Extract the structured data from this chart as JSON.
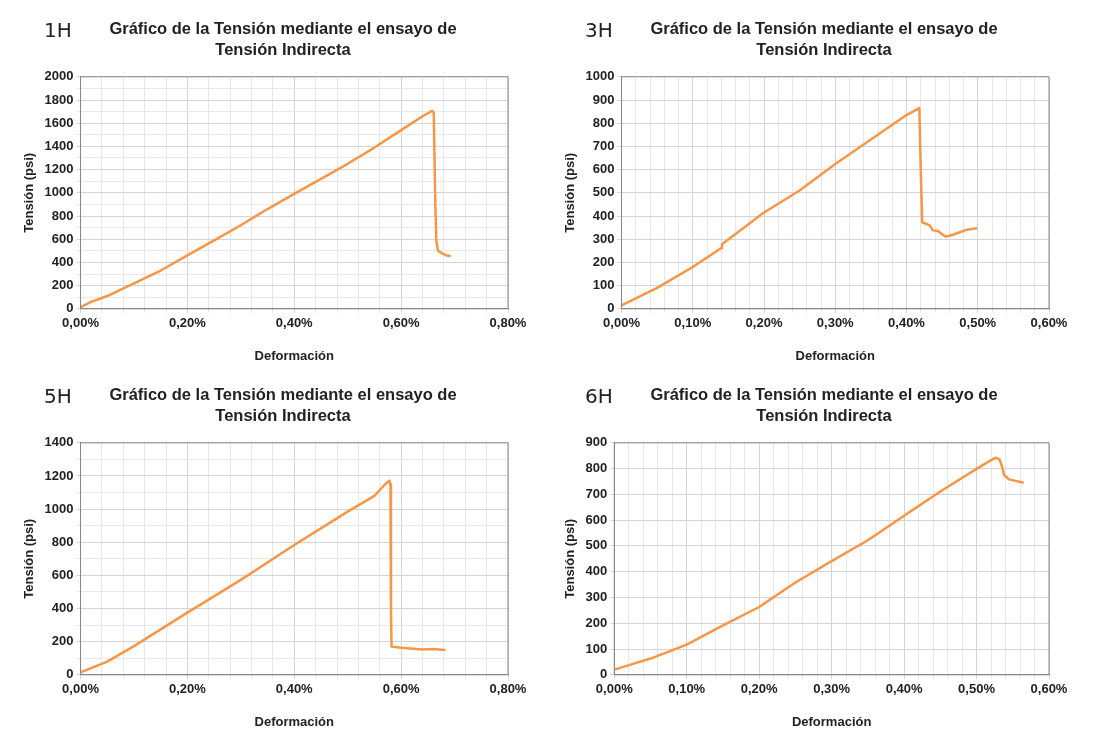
{
  "chart_data": [
    {
      "type": "line",
      "title": "Gráfico de la Tensión mediante el ensayo de Tensión Indirecta",
      "annotations": [
        "1H"
      ],
      "xlabel": "Deformación",
      "ylabel": "Tensión (psi)",
      "grid": true,
      "color": "#f79646",
      "x": [
        0,
        0.02,
        0.05,
        0.1,
        0.15,
        0.2,
        0.25,
        0.3,
        0.35,
        0.4,
        0.45,
        0.5,
        0.55,
        0.6,
        0.64,
        0.658,
        0.661,
        0.664,
        0.666,
        0.669,
        0.678,
        0.685,
        0.693
      ],
      "values": [
        15,
        60,
        110,
        220,
        330,
        460,
        590,
        720,
        860,
        990,
        1120,
        1250,
        1390,
        1540,
        1660,
        1707,
        1690,
        900,
        580,
        500,
        475,
        460,
        455
      ],
      "xlim": [
        0,
        0.8
      ],
      "xticks": [
        {
          "value": 0,
          "label": "0,00%"
        },
        {
          "value": 0.04,
          "label": null
        },
        {
          "value": 0.08,
          "label": null
        },
        {
          "value": 0.12,
          "label": null
        },
        {
          "value": 0.16,
          "label": null
        },
        {
          "value": 0.2,
          "label": "0,20%"
        },
        {
          "value": 0.24,
          "label": null
        },
        {
          "value": 0.28,
          "label": null
        },
        {
          "value": 0.32,
          "label": null
        },
        {
          "value": 0.36,
          "label": null
        },
        {
          "value": 0.4,
          "label": "0,40%"
        },
        {
          "value": 0.44,
          "label": null
        },
        {
          "value": 0.48,
          "label": null
        },
        {
          "value": 0.52,
          "label": null
        },
        {
          "value": 0.56,
          "label": null
        },
        {
          "value": 0.6,
          "label": "0,60%"
        },
        {
          "value": 0.64,
          "label": null
        },
        {
          "value": 0.68,
          "label": null
        },
        {
          "value": 0.72,
          "label": null
        },
        {
          "value": 0.76,
          "label": null
        },
        {
          "value": 0.8,
          "label": "0,80%"
        }
      ],
      "ylim": [
        0,
        2000
      ],
      "yticks": [
        0,
        {
          "value": 100,
          "label": null
        },
        200,
        {
          "value": 300,
          "label": null
        },
        400,
        {
          "value": 500,
          "label": null
        },
        600,
        {
          "value": 700,
          "label": null
        },
        800,
        {
          "value": 900,
          "label": null
        },
        1000,
        {
          "value": 1100,
          "label": null
        },
        1200,
        {
          "value": 1300,
          "label": null
        },
        1400,
        {
          "value": 1500,
          "label": null
        },
        1600,
        {
          "value": 1700,
          "label": null
        },
        1800,
        {
          "value": 1900,
          "label": null
        },
        2000
      ]
    },
    {
      "type": "line",
      "title": "Gráfico de la Tensión mediante el ensayo de Tensión Indirecta",
      "annotations": [
        "3H"
      ],
      "xlabel": "Deformación",
      "ylabel": "Tensión (psi)",
      "grid": true,
      "color": "#f79646",
      "x": [
        0,
        0.05,
        0.1,
        0.14,
        0.141,
        0.2,
        0.25,
        0.3,
        0.35,
        0.4,
        0.418,
        0.42,
        0.422,
        0.432,
        0.437,
        0.444,
        0.455,
        0.465,
        0.485,
        0.499
      ],
      "values": [
        15,
        90,
        180,
        262,
        278,
        415,
        510,
        624,
        730,
        835,
        865,
        600,
        373,
        361,
        338,
        335,
        311,
        319,
        341,
        347
      ],
      "xlim": [
        0,
        0.6
      ],
      "xticks": [
        {
          "value": 0,
          "label": "0,00%"
        },
        {
          "value": 0.02,
          "label": null
        },
        {
          "value": 0.04,
          "label": null
        },
        {
          "value": 0.06,
          "label": null
        },
        {
          "value": 0.08,
          "label": null
        },
        {
          "value": 0.1,
          "label": "0,10%"
        },
        {
          "value": 0.12,
          "label": null
        },
        {
          "value": 0.14,
          "label": null
        },
        {
          "value": 0.16,
          "label": null
        },
        {
          "value": 0.18,
          "label": null
        },
        {
          "value": 0.2,
          "label": "0,20%"
        },
        {
          "value": 0.22,
          "label": null
        },
        {
          "value": 0.24,
          "label": null
        },
        {
          "value": 0.26,
          "label": null
        },
        {
          "value": 0.28,
          "label": null
        },
        {
          "value": 0.3,
          "label": "0,30%"
        },
        {
          "value": 0.32,
          "label": null
        },
        {
          "value": 0.34,
          "label": null
        },
        {
          "value": 0.36,
          "label": null
        },
        {
          "value": 0.38,
          "label": null
        },
        {
          "value": 0.4,
          "label": "0,40%"
        },
        {
          "value": 0.42,
          "label": null
        },
        {
          "value": 0.44,
          "label": null
        },
        {
          "value": 0.46,
          "label": null
        },
        {
          "value": 0.48,
          "label": null
        },
        {
          "value": 0.5,
          "label": "0,50%"
        },
        {
          "value": 0.52,
          "label": null
        },
        {
          "value": 0.54,
          "label": null
        },
        {
          "value": 0.56,
          "label": null
        },
        {
          "value": 0.58,
          "label": null
        },
        {
          "value": 0.6,
          "label": "0,60%"
        }
      ],
      "ylim": [
        0,
        1000
      ],
      "yticks": [
        0,
        100,
        200,
        300,
        400,
        500,
        600,
        700,
        800,
        900,
        1000
      ]
    },
    {
      "type": "line",
      "title": "Gráfico de la Tensión mediante el ensayo de Tensión Indirecta",
      "annotations": [
        "5H"
      ],
      "xlabel": "Deformación",
      "ylabel": "Tensión (psi)",
      "grid": true,
      "color": "#f79646",
      "x": [
        0,
        0.05,
        0.1,
        0.2,
        0.3,
        0.4,
        0.5,
        0.55,
        0.57,
        0.578,
        0.58,
        0.581,
        0.582,
        0.6,
        0.64,
        0.66,
        0.683
      ],
      "values": [
        15,
        80,
        173,
        375,
        573,
        783,
        985,
        1080,
        1150,
        1172,
        1150,
        400,
        170,
        163,
        152,
        155,
        150
      ],
      "xlim": [
        0,
        0.8
      ],
      "xticks": [
        {
          "value": 0,
          "label": "0,00%"
        },
        {
          "value": 0.04,
          "label": null
        },
        {
          "value": 0.08,
          "label": null
        },
        {
          "value": 0.12,
          "label": null
        },
        {
          "value": 0.16,
          "label": null
        },
        {
          "value": 0.2,
          "label": "0,20%"
        },
        {
          "value": 0.24,
          "label": null
        },
        {
          "value": 0.28,
          "label": null
        },
        {
          "value": 0.32,
          "label": null
        },
        {
          "value": 0.36,
          "label": null
        },
        {
          "value": 0.4,
          "label": "0,40%"
        },
        {
          "value": 0.44,
          "label": null
        },
        {
          "value": 0.48,
          "label": null
        },
        {
          "value": 0.52,
          "label": null
        },
        {
          "value": 0.56,
          "label": null
        },
        {
          "value": 0.6,
          "label": "0,60%"
        },
        {
          "value": 0.64,
          "label": null
        },
        {
          "value": 0.68,
          "label": null
        },
        {
          "value": 0.72,
          "label": null
        },
        {
          "value": 0.76,
          "label": null
        },
        {
          "value": 0.8,
          "label": "0,80%"
        }
      ],
      "ylim": [
        0,
        1400
      ],
      "yticks": [
        0,
        {
          "value": 100,
          "label": null
        },
        200,
        {
          "value": 300,
          "label": null
        },
        400,
        {
          "value": 500,
          "label": null
        },
        600,
        {
          "value": 700,
          "label": null
        },
        800,
        {
          "value": 900,
          "label": null
        },
        1000,
        {
          "value": 1100,
          "label": null
        },
        1200,
        {
          "value": 1300,
          "label": null
        },
        1400
      ]
    },
    {
      "type": "line",
      "title": "Gráfico de la Tensión mediante el ensayo de Tensión Indirecta",
      "annotations": [
        "6H"
      ],
      "xlabel": "Deformación",
      "ylabel": "Tensión (psi)",
      "grid": true,
      "color": "#f79646",
      "x": [
        0,
        0.05,
        0.1,
        0.15,
        0.2,
        0.25,
        0.3,
        0.35,
        0.4,
        0.45,
        0.5,
        0.52,
        0.527,
        0.532,
        0.535,
        0.538,
        0.545,
        0.565
      ],
      "values": [
        20,
        63,
        117,
        192,
        263,
        358,
        441,
        522,
        617,
        711,
        799,
        833,
        842,
        835,
        810,
        775,
        758,
        745
      ],
      "xlim": [
        0,
        0.6
      ],
      "xticks": [
        {
          "value": 0,
          "label": "0,00%"
        },
        {
          "value": 0.02,
          "label": null
        },
        {
          "value": 0.04,
          "label": null
        },
        {
          "value": 0.06,
          "label": null
        },
        {
          "value": 0.08,
          "label": null
        },
        {
          "value": 0.1,
          "label": "0,10%"
        },
        {
          "value": 0.12,
          "label": null
        },
        {
          "value": 0.14,
          "label": null
        },
        {
          "value": 0.16,
          "label": null
        },
        {
          "value": 0.18,
          "label": null
        },
        {
          "value": 0.2,
          "label": "0,20%"
        },
        {
          "value": 0.22,
          "label": null
        },
        {
          "value": 0.24,
          "label": null
        },
        {
          "value": 0.26,
          "label": null
        },
        {
          "value": 0.28,
          "label": null
        },
        {
          "value": 0.3,
          "label": "0,30%"
        },
        {
          "value": 0.32,
          "label": null
        },
        {
          "value": 0.34,
          "label": null
        },
        {
          "value": 0.36,
          "label": null
        },
        {
          "value": 0.38,
          "label": null
        },
        {
          "value": 0.4,
          "label": "0,40%"
        },
        {
          "value": 0.42,
          "label": null
        },
        {
          "value": 0.44,
          "label": null
        },
        {
          "value": 0.46,
          "label": null
        },
        {
          "value": 0.48,
          "label": null
        },
        {
          "value": 0.5,
          "label": "0,50%"
        },
        {
          "value": 0.52,
          "label": null
        },
        {
          "value": 0.54,
          "label": null
        },
        {
          "value": 0.56,
          "label": null
        },
        {
          "value": 0.58,
          "label": null
        },
        {
          "value": 0.6,
          "label": "0,60%"
        }
      ],
      "ylim": [
        0,
        900
      ],
      "yticks": [
        0,
        100,
        200,
        300,
        400,
        500,
        600,
        700,
        800,
        900
      ]
    }
  ]
}
